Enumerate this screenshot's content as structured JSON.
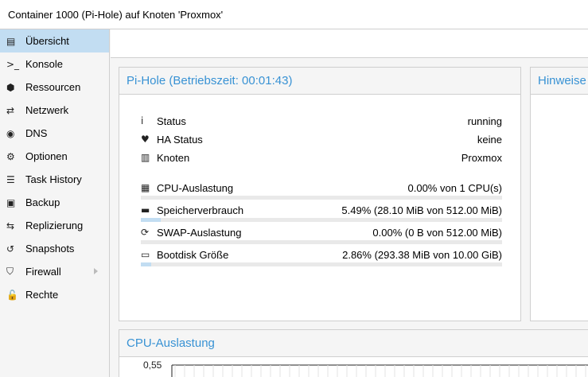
{
  "header": {
    "title": "Container 1000 (Pi-Hole) auf Knoten 'Proxmox'"
  },
  "sidebar": {
    "items": [
      {
        "label": "Übersicht",
        "icon": "book-icon",
        "glyph": "▤",
        "active": true
      },
      {
        "label": "Konsole",
        "icon": "terminal-icon",
        "glyph": ">_"
      },
      {
        "label": "Ressourcen",
        "icon": "cube-icon",
        "glyph": "⬢"
      },
      {
        "label": "Netzwerk",
        "icon": "exchange-icon",
        "glyph": "⇄"
      },
      {
        "label": "DNS",
        "icon": "globe-icon",
        "glyph": "◉"
      },
      {
        "label": "Optionen",
        "icon": "gear-icon",
        "glyph": "⚙"
      },
      {
        "label": "Task History",
        "icon": "list-icon",
        "glyph": "☰"
      },
      {
        "label": "Backup",
        "icon": "floppy-icon",
        "glyph": "▣"
      },
      {
        "label": "Replizierung",
        "icon": "retweet-icon",
        "glyph": "⇆"
      },
      {
        "label": "Snapshots",
        "icon": "history-icon",
        "glyph": "↺"
      },
      {
        "label": "Firewall",
        "icon": "shield-icon",
        "glyph": "⛉"
      },
      {
        "label": "Rechte",
        "icon": "unlock-icon",
        "glyph": "🔓"
      }
    ]
  },
  "summary": {
    "title": "Pi-Hole (Betriebszeit: 00:01:43)",
    "rows": [
      {
        "icon": "info-icon",
        "glyph": "i",
        "label": "Status",
        "value": "running"
      },
      {
        "icon": "heartbeat-icon",
        "glyph": "♥",
        "label": "HA Status",
        "value": "keine"
      },
      {
        "icon": "building-icon",
        "glyph": "▥",
        "label": "Knoten",
        "value": "Proxmox"
      }
    ],
    "usage": [
      {
        "icon": "cpu-icon",
        "glyph": "▦",
        "label": "CPU-Auslastung",
        "value": "0.00% von 1 CPU(s)",
        "fraction": 0.0
      },
      {
        "icon": "memory-icon",
        "glyph": "▬",
        "label": "Speicherverbrauch",
        "value": "5.49% (28.10 MiB von 512.00 MiB)",
        "fraction": 0.0549
      },
      {
        "icon": "refresh-icon",
        "glyph": "⟳",
        "label": "SWAP-Auslastung",
        "value": "0.00% (0 B von 512.00 MiB)",
        "fraction": 0.0
      },
      {
        "icon": "hdd-icon",
        "glyph": "▭",
        "label": "Bootdisk Größe",
        "value": "2.86% (293.38 MiB von 10.00 GiB)",
        "fraction": 0.0286
      }
    ]
  },
  "notes": {
    "title": "Hinweise"
  },
  "cpu_chart": {
    "title": "CPU-Auslastung",
    "ytick": "0,55"
  },
  "colors": {
    "accent": "#3892d4",
    "active_bg": "#c2ddf2",
    "bar_fill": "#c2ddf2"
  }
}
